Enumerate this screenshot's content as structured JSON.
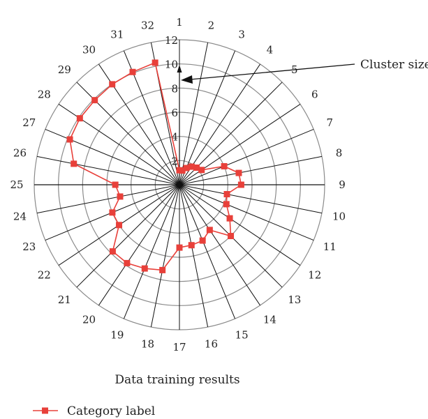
{
  "chart_data": {
    "type": "radar",
    "title": "Data training results",
    "categories": [
      "1",
      "2",
      "3",
      "4",
      "5",
      "6",
      "7",
      "8",
      "9",
      "10",
      "11",
      "12",
      "13",
      "14",
      "15",
      "16",
      "17",
      "18",
      "19",
      "20",
      "21",
      "22",
      "23",
      "24",
      "25",
      "26",
      "27",
      "28",
      "29",
      "30",
      "31",
      "32"
    ],
    "radial_ticks": [
      "2",
      "4",
      "6",
      "8",
      "10",
      "12"
    ],
    "rlim": [
      0,
      12
    ],
    "grid": true,
    "annotation": "Cluster size",
    "series": [
      {
        "name": "Category label",
        "color": "#e8403a",
        "marker": "square",
        "values": [
          1.2,
          1.2,
          1.5,
          1.8,
          2.0,
          2.2,
          4.0,
          5.0,
          5.1,
          4.0,
          4.2,
          5.0,
          6.0,
          4.5,
          5.0,
          5.1,
          5.2,
          7.2,
          7.5,
          7.8,
          7.8,
          6.0,
          6.0,
          5.0,
          5.3,
          8.9,
          9.8,
          9.9,
          9.9,
          10.0,
          10.1,
          10.3
        ]
      }
    ]
  },
  "legend": {
    "label": "Category label"
  }
}
